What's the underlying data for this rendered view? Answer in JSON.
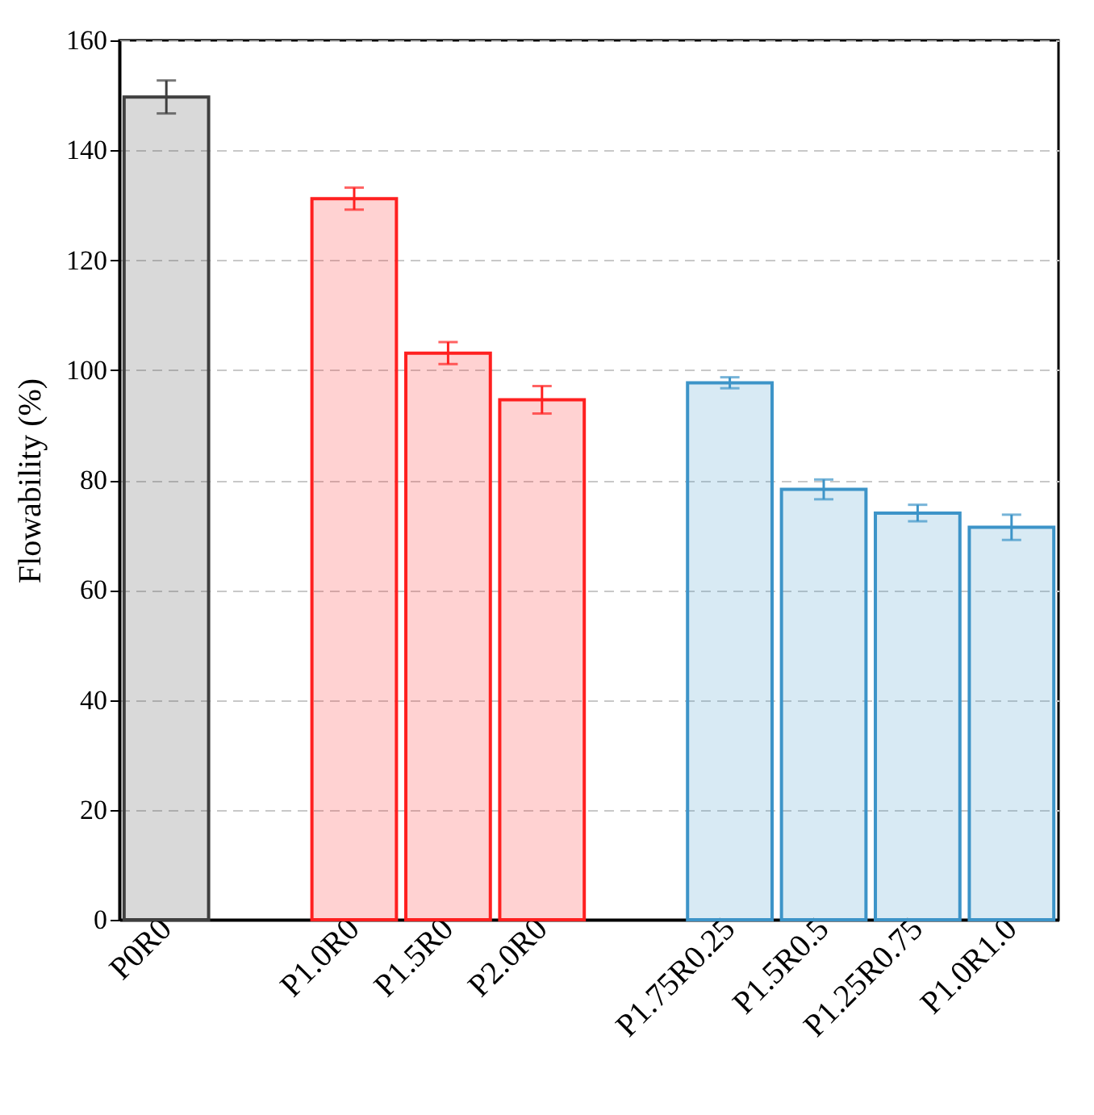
{
  "chart_data": {
    "type": "bar",
    "ylabel": "Flowability (%)",
    "categories": [
      "P0R0",
      null,
      "P1.0R0",
      "P1.5R0",
      "P2.0R0",
      null,
      "P1.75R0.25",
      "P1.5R0.5",
      "P1.25R0.75",
      "P1.0R1.0"
    ],
    "values": [
      149.7,
      null,
      131.2,
      103.1,
      94.6,
      null,
      97.7,
      78.3,
      74.0,
      71.4
    ],
    "errors": [
      3,
      null,
      2,
      2,
      2.5,
      null,
      1,
      1.8,
      1.5,
      2.3
    ],
    "colors": [
      "#3f3f3f",
      null,
      "#ff2020",
      "#ff2020",
      "#ff2020",
      null,
      "#3d94c8",
      "#3d94c8",
      "#3d94c8",
      "#3d94c8"
    ],
    "ylim": [
      0,
      160
    ],
    "yticks": [
      0,
      20,
      40,
      60,
      80,
      100,
      120,
      140,
      160
    ],
    "grid": "y"
  }
}
